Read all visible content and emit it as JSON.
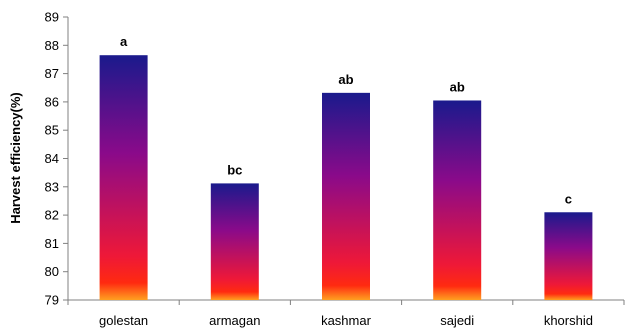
{
  "chart_data": {
    "type": "bar",
    "title": "",
    "xlabel": "",
    "ylabel": "Harvest efficiency(%)",
    "ylim": [
      79,
      89
    ],
    "yticks": [
      "79",
      "80",
      "81",
      "82",
      "83",
      "84",
      "85",
      "86",
      "87",
      "88",
      "89"
    ],
    "grid": false,
    "legend": "none",
    "categories": [
      "golestan",
      "armagan",
      "kashmar",
      "sajedi",
      "khorshid"
    ],
    "values": [
      87.65,
      83.12,
      86.32,
      86.05,
      82.1
    ],
    "data_labels": [
      "a",
      "bc",
      "ab",
      "ab",
      "c"
    ],
    "bar_gradient_colors": [
      "#1a1a8c",
      "#8a0a8a",
      "#ee1838",
      "#ff2a10",
      "#ffa020"
    ]
  }
}
